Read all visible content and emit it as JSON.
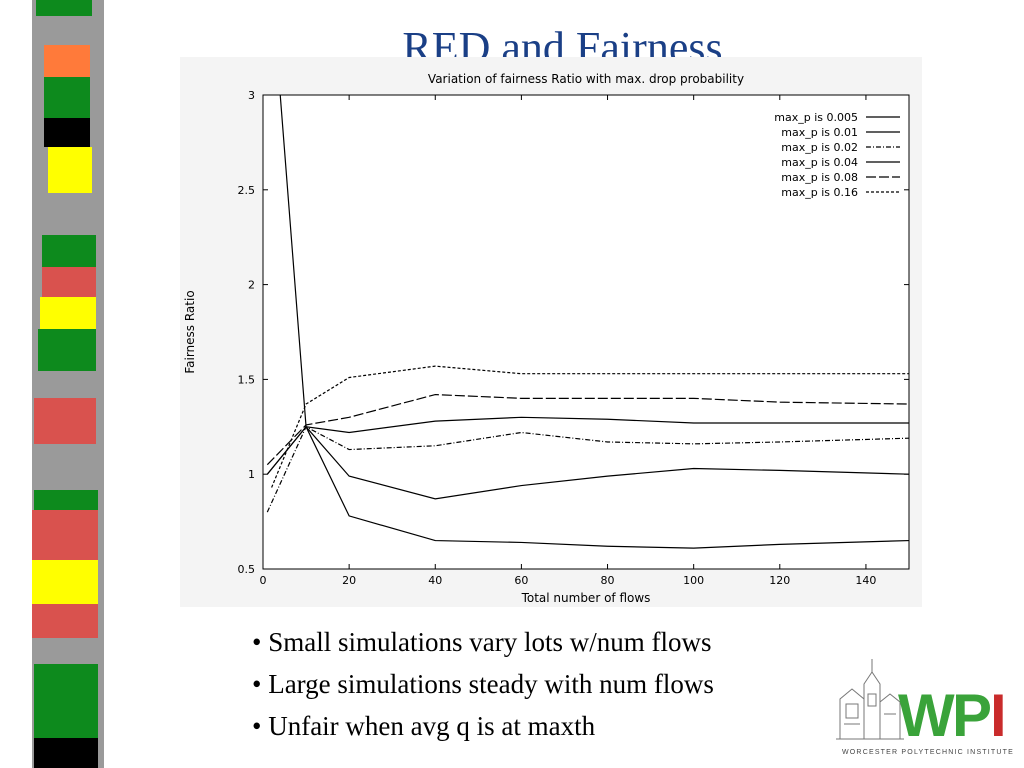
{
  "slide": {
    "title": "RED and Fairness",
    "bullets": [
      "Small simulations vary lots w/num flows",
      "Large simulations steady with num flows",
      "Unfair when avg q is at maxth"
    ]
  },
  "logo": {
    "text": "WPI",
    "caption": "WORCESTER POLYTECHNIC INSTITUTE"
  },
  "colors": {
    "title": "#1a3f86",
    "stripe_green": "#0d8a1d",
    "stripe_red": "#d9524e",
    "stripe_yellow": "#ffff00",
    "stripe_orange": "#ff7a3a",
    "stripe_gray": "#9a9a9a",
    "logo_green": "#3aa33a",
    "logo_red": "#c92b2b"
  },
  "chart_data": {
    "type": "line",
    "title": "Variation of fairness Ratio with max. drop probability",
    "xlabel": "Total number of flows",
    "ylabel": "Fairness Ratio",
    "xlim": [
      0,
      150
    ],
    "ylim": [
      0.5,
      3
    ],
    "xticks": [
      0,
      20,
      40,
      60,
      80,
      100,
      120,
      140
    ],
    "yticks": [
      0.5,
      1,
      1.5,
      2,
      2.5,
      3
    ],
    "grid": false,
    "legend_position": "top-right",
    "series": [
      {
        "name": "max_p is 0.005",
        "dash": "",
        "x": [
          4,
          10,
          20,
          40,
          60,
          80,
          100,
          120,
          150
        ],
        "y": [
          3.0,
          1.25,
          0.78,
          0.65,
          0.64,
          0.62,
          0.61,
          0.63,
          0.65
        ]
      },
      {
        "name": "max_p is 0.01",
        "dash": "",
        "x": [
          1,
          10,
          20,
          40,
          60,
          80,
          100,
          120,
          150
        ],
        "y": [
          1.0,
          1.25,
          0.99,
          0.87,
          0.94,
          0.99,
          1.03,
          1.02,
          1.0
        ]
      },
      {
        "name": "max_p is 0.02",
        "dash": "5,2,1,2",
        "x": [
          1,
          10,
          20,
          40,
          60,
          80,
          100,
          120,
          150
        ],
        "y": [
          0.8,
          1.25,
          1.13,
          1.15,
          1.22,
          1.17,
          1.16,
          1.17,
          1.19
        ]
      },
      {
        "name": "max_p is 0.04",
        "dash": "",
        "x": [
          1,
          10,
          20,
          40,
          60,
          80,
          100,
          120,
          150
        ],
        "y": [
          1.0,
          1.25,
          1.22,
          1.28,
          1.3,
          1.29,
          1.27,
          1.27,
          1.27
        ]
      },
      {
        "name": "max_p is 0.08",
        "dash": "10,3",
        "x": [
          1,
          10,
          20,
          40,
          60,
          80,
          100,
          120,
          150
        ],
        "y": [
          1.05,
          1.26,
          1.3,
          1.42,
          1.4,
          1.4,
          1.4,
          1.38,
          1.37
        ]
      },
      {
        "name": "max_p is 0.16",
        "dash": "3,2",
        "x": [
          2,
          10,
          20,
          40,
          60,
          80,
          100,
          120,
          150
        ],
        "y": [
          0.93,
          1.37,
          1.51,
          1.57,
          1.53,
          1.53,
          1.53,
          1.53,
          1.53
        ]
      }
    ]
  }
}
